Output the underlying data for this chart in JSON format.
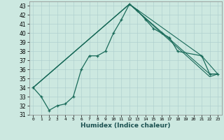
{
  "xlabel": "Humidex (Indice chaleur)",
  "bg_color": "#cce8e0",
  "grid_color": "#aacccc",
  "line_color": "#1a6b5a",
  "xlim": [
    -0.5,
    23.5
  ],
  "ylim": [
    31,
    43.5
  ],
  "xticks": [
    0,
    1,
    2,
    3,
    4,
    5,
    6,
    7,
    8,
    9,
    10,
    11,
    12,
    13,
    14,
    15,
    16,
    17,
    18,
    19,
    20,
    21,
    22,
    23
  ],
  "yticks": [
    31,
    32,
    33,
    34,
    35,
    36,
    37,
    38,
    39,
    40,
    41,
    42,
    43
  ],
  "series1_x": [
    0,
    1,
    2,
    3,
    4,
    5,
    6,
    7,
    8,
    9,
    10,
    11,
    12,
    13,
    14,
    15,
    16,
    17,
    18,
    21,
    22,
    23
  ],
  "series1_y": [
    34.0,
    33.0,
    31.5,
    32.0,
    32.2,
    33.0,
    36.0,
    37.5,
    37.5,
    38.0,
    40.0,
    41.5,
    43.2,
    42.5,
    41.5,
    40.5,
    40.0,
    39.5,
    38.0,
    37.5,
    35.5,
    35.5
  ],
  "series2_x": [
    0,
    12,
    21,
    23
  ],
  "series2_y": [
    34.0,
    43.2,
    37.5,
    35.5
  ],
  "series3_x": [
    0,
    12,
    22,
    23
  ],
  "series3_y": [
    34.0,
    43.2,
    35.5,
    35.5
  ],
  "series4_x": [
    0,
    12,
    22,
    23
  ],
  "series4_y": [
    34.0,
    43.2,
    35.2,
    35.5
  ]
}
